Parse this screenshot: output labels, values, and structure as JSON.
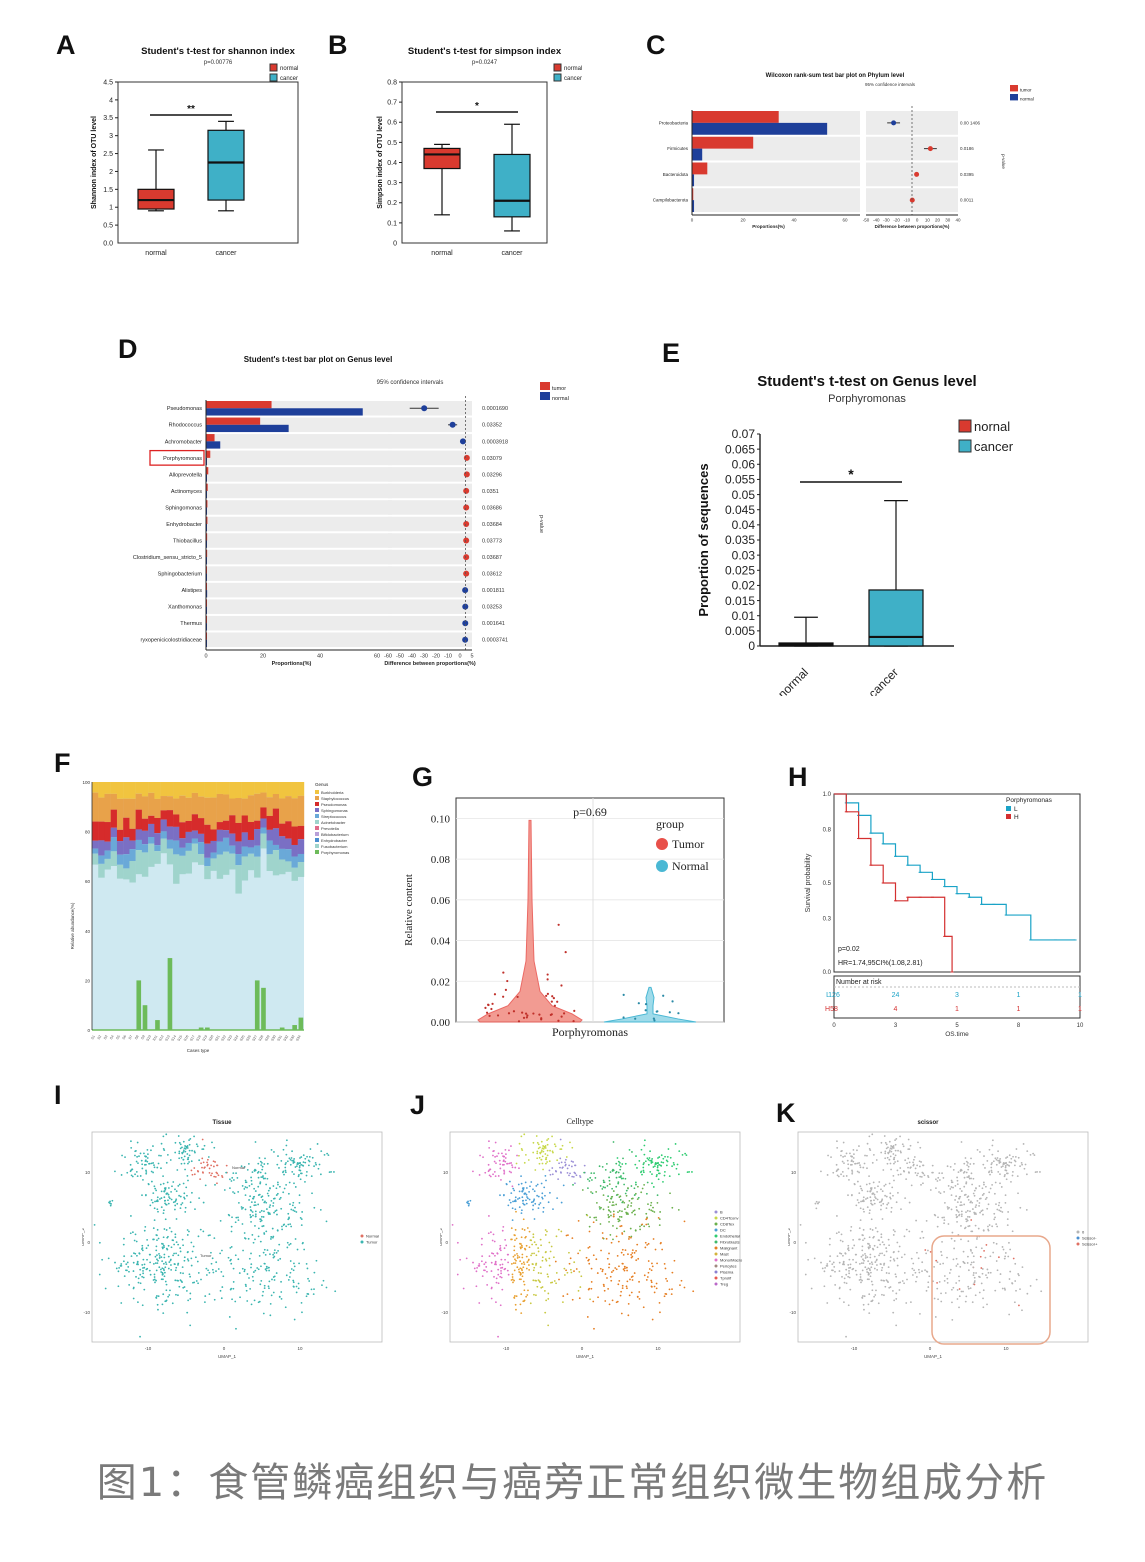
{
  "caption": "图1：食管鳞癌组织与癌旁正常组织微生物组成分析",
  "colors": {
    "normal": "#d93a2f",
    "cancer": "#3fb0c7",
    "blue": "#1e3f9a",
    "tumor_g": "#e8504a",
    "normal_g": "#4ab8d4",
    "gray_bg": "#ececec"
  },
  "panels": {
    "A": {
      "label": "A"
    },
    "B": {
      "label": "B"
    },
    "C": {
      "label": "C"
    },
    "D": {
      "label": "D"
    },
    "E": {
      "label": "E"
    },
    "F": {
      "label": "F"
    },
    "G": {
      "label": "G"
    },
    "H": {
      "label": "H"
    },
    "I": {
      "label": "I"
    },
    "J": {
      "label": "J"
    },
    "K": {
      "label": "K"
    }
  },
  "chart_data": [
    {
      "id": "A",
      "type": "box",
      "title": "Student's t-test for shannon index",
      "subtitle": "p=0.00776",
      "ylabel": "Shannon index of OTU level",
      "ylim": [
        0,
        4.5
      ],
      "yticks": [
        "0.5",
        "1",
        "1.5",
        "2",
        "2.5",
        "3",
        "3.5",
        "4",
        "4.5"
      ],
      "yticks_v": [
        0.5,
        1,
        1.5,
        2,
        2.5,
        3,
        3.5,
        4,
        4.5
      ],
      "ytick0": "0.0",
      "categories": [
        "normal",
        "cancer"
      ],
      "legend": [
        "normal",
        "cancer"
      ],
      "sig": "**",
      "boxes": [
        {
          "min": 0.9,
          "q1": 0.95,
          "median": 1.2,
          "q3": 1.5,
          "max": 2.6
        },
        {
          "min": 0.9,
          "q1": 1.2,
          "median": 2.25,
          "q3": 3.15,
          "max": 3.4
        }
      ]
    },
    {
      "id": "B",
      "type": "box",
      "title": "Student's t-test for simpson index",
      "subtitle": "p=0.0247",
      "ylabel": "Simpson index of OTU level",
      "ylim": [
        0,
        0.8
      ],
      "yticks": [
        "0.1",
        "0.2",
        "0.3",
        "0.4",
        "0.5",
        "0.6",
        "0.7",
        "0.8"
      ],
      "yticks_v": [
        0.1,
        0.2,
        0.3,
        0.4,
        0.5,
        0.6,
        0.7,
        0.8
      ],
      "ytick0": "0",
      "categories": [
        "normal",
        "cancer"
      ],
      "legend": [
        "normal",
        "cancer"
      ],
      "sig": "*",
      "boxes": [
        {
          "min": 0.14,
          "q1": 0.37,
          "median": 0.44,
          "q3": 0.47,
          "max": 0.49
        },
        {
          "min": 0.06,
          "q1": 0.13,
          "median": 0.21,
          "q3": 0.44,
          "max": 0.59
        }
      ]
    },
    {
      "id": "C",
      "type": "bar",
      "title": "Wilcoxon rank-sum test bar plot on Phylum level",
      "subtitle": "95% confidence intervals",
      "categories": [
        "Proteobacteria",
        "Firmicutes",
        "Bacteroidota",
        "Campilobacterota"
      ],
      "series": [
        {
          "name": "tumor",
          "values": [
            34,
            24,
            6,
            0.5
          ]
        },
        {
          "name": "normal",
          "values": [
            53,
            4,
            0.8,
            0.8
          ]
        }
      ],
      "xlabel": "Proportions(%)",
      "xticks": [
        "0",
        "20",
        "40",
        "60"
      ],
      "diff_xlabel": "Difference between proportions(%)",
      "diff_xticks": [
        "-50",
        "-40",
        "-30",
        "-20",
        "-10",
        "0",
        "10",
        "20",
        "30",
        "40"
      ],
      "diff": [
        -20,
        20,
        5,
        0.3
      ],
      "pvalues": [
        "0.00 1406",
        "0.0186",
        "0.0395",
        "0.0011"
      ],
      "right_label": "p-value"
    },
    {
      "id": "D",
      "type": "bar",
      "title": "Student's t-test bar plot on Genus level",
      "subtitle": "95% confidence intervals",
      "categories": [
        "Pseudomonas",
        "Rhodococcus",
        "Achromobacter",
        "Porphyromonas",
        "Alloprevotella",
        "Actinomyces",
        "Sphingomonas",
        "Enhydrobacter",
        "Thiobacillus",
        "Clostridium_sensu_stricto_5",
        "Sphingobacterium",
        "Alistipes",
        "Xanthomonas",
        "Thermus",
        "ryxopenicicolostridiaceae"
      ],
      "highlight": "Porphyromonas",
      "series": [
        {
          "name": "tumor",
          "values": [
            23,
            19,
            3,
            1.5,
            0.8,
            0.6,
            0.5,
            0.5,
            0.4,
            0.4,
            0.3,
            0.2,
            0.2,
            0.2,
            0.1
          ]
        },
        {
          "name": "normal",
          "values": [
            55,
            29,
            5,
            0.3,
            0.3,
            0.3,
            0.2,
            0.2,
            0.2,
            0.1,
            0.1,
            0.4,
            0.3,
            0.3,
            0.3
          ]
        }
      ],
      "xlabel": "Proportions(%)",
      "xticks": [
        "0",
        "20",
        "40",
        "60"
      ],
      "diff_xlabel": "Difference between proportions(%)",
      "diff_xticks": [
        "-60",
        "-50",
        "-40",
        "-30",
        "-20",
        "-10",
        "0",
        "5"
      ],
      "diff": [
        -32,
        -10,
        -2,
        1,
        1,
        0.5,
        0.5,
        0.5,
        0.5,
        0.5,
        0.5,
        -0.3,
        -0.2,
        -0.2,
        -0.3
      ],
      "pvalues": [
        "0.0001690",
        "0.03352",
        "0.0003918",
        "0.03079",
        "0.03296",
        "0.0351",
        "0.03686",
        "0.03684",
        "0.03773",
        "0.03687",
        "0.03612",
        "0.001811",
        "0.03253",
        "0.001641",
        "0.0003741"
      ],
      "right_label": "p-value"
    },
    {
      "id": "E",
      "type": "box",
      "title": "Student's t-test on Genus level",
      "subtitle": "Porphyromonas",
      "ylabel": "Proportion of sequences",
      "ylim": [
        0,
        0.07
      ],
      "yticks": [
        "0",
        "0.005",
        "0.01",
        "0.015",
        "0.02",
        "0.025",
        "0.03",
        "0.035",
        "0.04",
        "0.045",
        "0.05",
        "0.055",
        "0.06",
        "0.065",
        "0.07"
      ],
      "yticks_v": [
        0,
        0.005,
        0.01,
        0.015,
        0.02,
        0.025,
        0.03,
        0.035,
        0.04,
        0.045,
        0.05,
        0.055,
        0.06,
        0.065,
        0.07
      ],
      "categories": [
        "normal",
        "cancer"
      ],
      "legend": [
        "nornal",
        "cancer"
      ],
      "sig": "*",
      "boxes": [
        {
          "min": 0,
          "q1": 0,
          "median": 0.0005,
          "q3": 0.001,
          "max": 0.0095
        },
        {
          "min": 0,
          "q1": 0,
          "median": 0.003,
          "q3": 0.0185,
          "max": 0.048
        }
      ]
    },
    {
      "id": "F",
      "type": "bar",
      "stacked": true,
      "ylabel": "Relative abundance(%)",
      "xlabel": "Cases type",
      "yticks": [
        "0",
        "20",
        "40",
        "60",
        "80",
        "100"
      ],
      "legend_title": "Genus",
      "legend": [
        "Burkholderia",
        "Staphylococcus",
        "Pseudomonas",
        "Sphingomonas",
        "Streptococcus",
        "Acinetobacter",
        "Prevotella",
        "Bifidobacterium",
        "Enhydrobacter",
        "Fusobacterium",
        "Porphyromonas"
      ],
      "porphyromonas_values": [
        0,
        0,
        0,
        0,
        0,
        0,
        0,
        20,
        10,
        0,
        4,
        0,
        29,
        0,
        0,
        0,
        0,
        1,
        1,
        0,
        0,
        0,
        0,
        0,
        0,
        0,
        20,
        17,
        0,
        0,
        1,
        0,
        2,
        5
      ]
    },
    {
      "id": "G",
      "type": "violin",
      "pvalue": "p=0.69",
      "ylabel": "Relative content",
      "xlabel": "Porphyromonas",
      "yticks": [
        "0.00",
        "0.02",
        "0.04",
        "0.06",
        "0.08",
        "0.10"
      ],
      "ylim": [
        0,
        0.11
      ],
      "legend_title": "group",
      "legend": [
        "Tumor",
        "Normal"
      ],
      "groups": [
        {
          "name": "Tumor",
          "max": 0.099
        },
        {
          "name": "Normal",
          "max": 0.017
        }
      ]
    },
    {
      "id": "H",
      "type": "line",
      "legend_title": "Porphyromonas",
      "legend": [
        "L",
        "H"
      ],
      "ylabel": "Survival probability",
      "xlabel": "OS.time",
      "yticks": [
        "0.0",
        "0.3",
        "0.5",
        "0.8",
        "1.0"
      ],
      "xticks": [
        "0",
        "3",
        "5",
        "8",
        "10"
      ],
      "stats": [
        "p=0.02",
        "HR=1.74,95CI%(1.08,2.81)"
      ],
      "risk_title": "Number at risk",
      "risk": [
        {
          "group": "L",
          "values": [
            "126",
            "24",
            "3",
            "1",
            "1"
          ]
        },
        {
          "group": "H",
          "values": [
            "58",
            "4",
            "1",
            "1",
            "1"
          ]
        }
      ],
      "series": [
        {
          "name": "L",
          "x": [
            0,
            0.5,
            1,
            1.5,
            2,
            2.5,
            3,
            3.5,
            4,
            4.5,
            5,
            5.5,
            6,
            6.5,
            7,
            8,
            9,
            9.8
          ],
          "y": [
            1.0,
            0.95,
            0.88,
            0.78,
            0.72,
            0.65,
            0.6,
            0.56,
            0.52,
            0.48,
            0.44,
            0.42,
            0.38,
            0.38,
            0.32,
            0.18,
            0.18,
            0.18
          ]
        },
        {
          "name": "H",
          "x": [
            0,
            0.5,
            1,
            1.5,
            2,
            2.5,
            3,
            3.5,
            4,
            4.5,
            4.8
          ],
          "y": [
            1.0,
            0.9,
            0.75,
            0.6,
            0.5,
            0.4,
            0.42,
            0.42,
            0.42,
            0.2,
            0.0
          ]
        }
      ]
    },
    {
      "id": "I",
      "type": "scatter",
      "title": "Tissue",
      "xlabel": "UMAP_1",
      "ylabel": "UMAP_2",
      "xticks": [
        "-10",
        "0",
        "10"
      ],
      "yticks": [
        "10",
        "0",
        "-10"
      ],
      "legend": [
        "Normal",
        "Tumor"
      ],
      "annotations": [
        "Normal",
        "Tumor"
      ]
    },
    {
      "id": "J",
      "type": "scatter",
      "title": "Celltype",
      "xlabel": "UMAP_1",
      "ylabel": "UMAP_2",
      "xticks": [
        "-10",
        "0",
        "10"
      ],
      "yticks": [
        "10",
        "0",
        "-10"
      ],
      "legend": [
        "B",
        "CD4Tconv",
        "CD8Tex",
        "DC",
        "Endothelial",
        "Fibroblasts",
        "Malignant",
        "Mast",
        "Mono/Macro",
        "Pericytes",
        "Plasma",
        "Tprolif",
        "Treg"
      ]
    },
    {
      "id": "K",
      "type": "scatter",
      "title": "scissor",
      "xlabel": "UMAP_1",
      "ylabel": "UMAP_2",
      "xticks": [
        "-10",
        "0",
        "10"
      ],
      "yticks": [
        "10",
        "0",
        "-10"
      ],
      "legend": [
        "0",
        "Scissor-",
        "Scissor+"
      ]
    }
  ]
}
